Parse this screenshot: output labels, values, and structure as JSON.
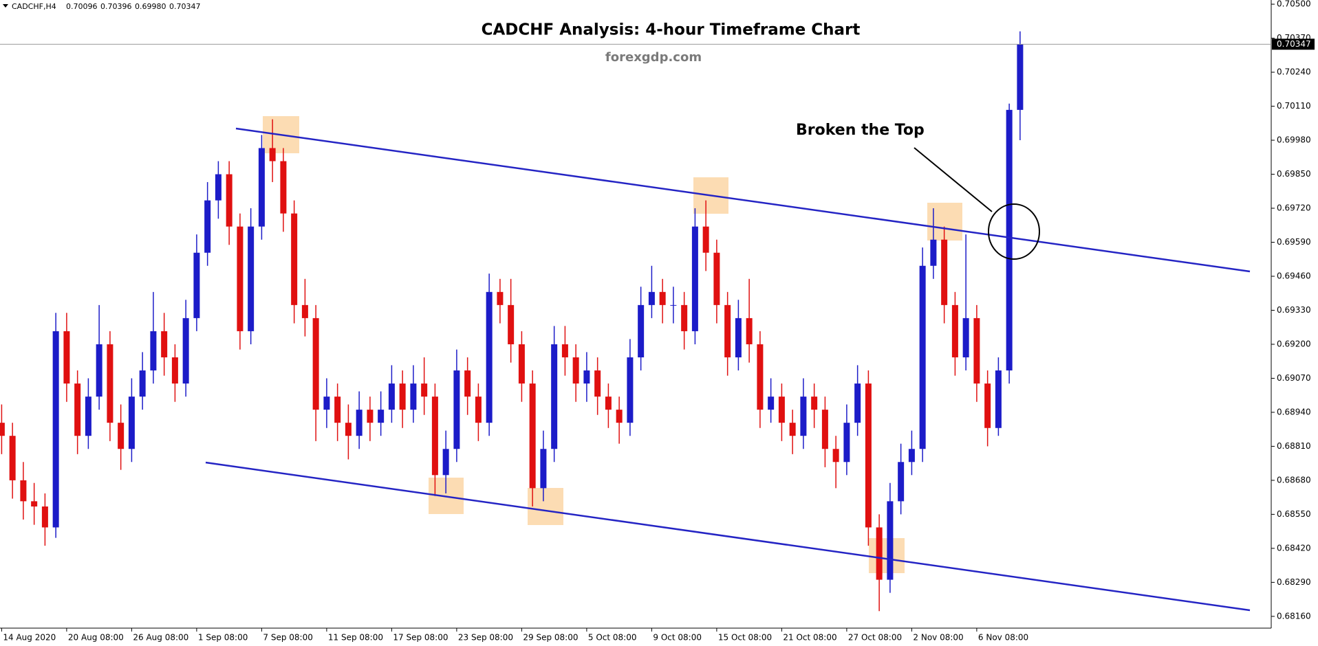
{
  "chart_data": {
    "type": "candlestick",
    "symbol": "CADCHF,H4",
    "title": "CADCHF Analysis: 4-hour Timeframe Chart",
    "source": "forexgdp.com",
    "annotation": "Broken the Top",
    "last_low_label": "0.69980",
    "up_color": "#1c1cc8",
    "down_color": "#e01010",
    "categories": [
      "14 Aug 2020",
      null,
      null,
      null,
      null,
      null,
      "20 Aug 08:00",
      null,
      null,
      null,
      null,
      null,
      "26 Aug 08:00",
      null,
      null,
      null,
      null,
      null,
      "1 Sep 08:00",
      null,
      null,
      null,
      null,
      null,
      "7 Sep 08:00",
      null,
      null,
      null,
      null,
      null,
      "11 Sep 08:00",
      null,
      null,
      null,
      null,
      null,
      "17 Sep 08:00",
      null,
      null,
      null,
      null,
      null,
      "23 Sep 08:00",
      null,
      null,
      null,
      null,
      null,
      "29 Sep 08:00",
      null,
      null,
      null,
      null,
      null,
      "5 Oct 08:00",
      null,
      null,
      null,
      null,
      null,
      "9 Oct 08:00",
      null,
      null,
      null,
      null,
      null,
      "15 Oct 08:00",
      null,
      null,
      null,
      null,
      null,
      "21 Oct 08:00",
      null,
      null,
      null,
      null,
      null,
      "27 Oct 08:00",
      null,
      null,
      null,
      null,
      null,
      "2 Nov 08:00",
      null,
      null,
      null,
      null,
      null,
      "6 Nov 08:00",
      null,
      null,
      null,
      null
    ],
    "open": [
      0.689,
      0.6885,
      0.6868,
      0.686,
      0.6858,
      0.685,
      0.6925,
      0.6905,
      0.6885,
      0.69,
      0.692,
      0.689,
      0.688,
      0.69,
      0.691,
      0.6925,
      0.6915,
      0.6905,
      0.693,
      0.6955,
      0.6975,
      0.6985,
      0.6965,
      0.6925,
      0.6965,
      0.6995,
      0.699,
      0.697,
      0.6935,
      0.693,
      0.6895,
      0.69,
      0.689,
      0.6885,
      0.6895,
      0.689,
      0.6895,
      0.6905,
      0.6895,
      0.6905,
      0.69,
      0.687,
      0.688,
      0.691,
      0.69,
      0.689,
      0.694,
      0.6935,
      0.692,
      0.6905,
      0.6865,
      0.688,
      0.692,
      0.6915,
      0.6905,
      0.691,
      0.69,
      0.6895,
      0.689,
      0.6915,
      0.6935,
      0.694,
      0.6935,
      0.6935,
      0.6925,
      0.6965,
      0.6955,
      0.6935,
      0.6915,
      0.693,
      0.692,
      0.6895,
      0.69,
      0.689,
      0.6885,
      0.69,
      0.6895,
      0.688,
      0.6875,
      0.689,
      0.6905,
      0.685,
      0.683,
      0.686,
      0.6875,
      0.688,
      0.695,
      0.696,
      0.6935,
      0.6915,
      0.693,
      0.6905,
      0.6888,
      0.691,
      0.70096
    ],
    "high": [
      0.6897,
      0.689,
      0.6875,
      0.6867,
      0.6863,
      0.6932,
      0.6932,
      0.691,
      0.6907,
      0.6935,
      0.6925,
      0.6897,
      0.6907,
      0.6917,
      0.694,
      0.6932,
      0.692,
      0.6937,
      0.6962,
      0.6982,
      0.699,
      0.699,
      0.697,
      0.6972,
      0.7,
      0.7006,
      0.6995,
      0.6975,
      0.6945,
      0.6935,
      0.6907,
      0.6905,
      0.6897,
      0.6902,
      0.69,
      0.6902,
      0.6912,
      0.691,
      0.6912,
      0.6915,
      0.6905,
      0.6887,
      0.6918,
      0.6915,
      0.6905,
      0.6947,
      0.6945,
      0.6945,
      0.6925,
      0.691,
      0.6887,
      0.6927,
      0.6927,
      0.692,
      0.6917,
      0.6915,
      0.6905,
      0.69,
      0.6922,
      0.6942,
      0.695,
      0.6945,
      0.6942,
      0.694,
      0.6972,
      0.6975,
      0.696,
      0.694,
      0.6937,
      0.6945,
      0.6925,
      0.6907,
      0.6905,
      0.6895,
      0.6907,
      0.6905,
      0.69,
      0.6885,
      0.6897,
      0.6912,
      0.691,
      0.6855,
      0.6867,
      0.6882,
      0.6887,
      0.6957,
      0.6972,
      0.6965,
      0.694,
      0.6962,
      0.6935,
      0.691,
      0.6915,
      0.7012,
      0.70396
    ],
    "low": [
      0.6878,
      0.6861,
      0.6853,
      0.6851,
      0.6843,
      0.6846,
      0.6898,
      0.6878,
      0.688,
      0.6895,
      0.6883,
      0.6872,
      0.6875,
      0.6895,
      0.6905,
      0.6908,
      0.6898,
      0.69,
      0.6925,
      0.695,
      0.6968,
      0.6958,
      0.6918,
      0.692,
      0.696,
      0.6982,
      0.6963,
      0.6928,
      0.6923,
      0.6883,
      0.6888,
      0.6883,
      0.6876,
      0.688,
      0.6883,
      0.6885,
      0.689,
      0.6888,
      0.689,
      0.6893,
      0.6862,
      0.6863,
      0.6875,
      0.6893,
      0.6883,
      0.6885,
      0.6928,
      0.6913,
      0.6898,
      0.6858,
      0.686,
      0.6875,
      0.6908,
      0.6898,
      0.6898,
      0.6893,
      0.6888,
      0.6882,
      0.6885,
      0.691,
      0.693,
      0.6928,
      0.6928,
      0.6918,
      0.692,
      0.6948,
      0.6928,
      0.6908,
      0.691,
      0.6913,
      0.6888,
      0.689,
      0.6883,
      0.6878,
      0.688,
      0.6888,
      0.6873,
      0.6865,
      0.687,
      0.6885,
      0.6843,
      0.6818,
      0.6825,
      0.6855,
      0.687,
      0.6875,
      0.6945,
      0.6928,
      0.6908,
      0.691,
      0.6898,
      0.6881,
      0.6885,
      0.6905,
      0.6998
    ],
    "close": [
      0.6885,
      0.6868,
      0.686,
      0.6858,
      0.685,
      0.6925,
      0.6905,
      0.6885,
      0.69,
      0.692,
      0.689,
      0.688,
      0.69,
      0.691,
      0.6925,
      0.6915,
      0.6905,
      0.693,
      0.6955,
      0.6975,
      0.6985,
      0.6965,
      0.6925,
      0.6965,
      0.6995,
      0.699,
      0.697,
      0.6935,
      0.693,
      0.6895,
      0.69,
      0.689,
      0.6885,
      0.6895,
      0.689,
      0.6895,
      0.6905,
      0.6895,
      0.6905,
      0.69,
      0.687,
      0.688,
      0.691,
      0.69,
      0.689,
      0.694,
      0.6935,
      0.692,
      0.6905,
      0.6865,
      0.688,
      0.692,
      0.6915,
      0.6905,
      0.691,
      0.69,
      0.6895,
      0.689,
      0.6915,
      0.6935,
      0.694,
      0.6935,
      0.6935,
      0.6925,
      0.6965,
      0.6955,
      0.6935,
      0.6915,
      0.693,
      0.692,
      0.6895,
      0.69,
      0.689,
      0.6885,
      0.69,
      0.6895,
      0.688,
      0.6875,
      0.689,
      0.6905,
      0.685,
      0.683,
      0.686,
      0.6875,
      0.688,
      0.695,
      0.696,
      0.6935,
      0.6915,
      0.693,
      0.6905,
      0.6888,
      0.691,
      0.70096,
      0.70347
    ],
    "ylim": [
      0.68115,
      0.70516
    ],
    "yticks": [
      {
        "value": 0.705,
        "label": "0.70500"
      },
      {
        "value": 0.7037,
        "label": "0.70370"
      },
      {
        "value": 0.7024,
        "label": "0.70240"
      },
      {
        "value": 0.7011,
        "label": "0.70110"
      },
      {
        "value": 0.6998,
        "label": "0.69980"
      },
      {
        "value": 0.6985,
        "label": "0.69850"
      },
      {
        "value": 0.6972,
        "label": "0.69720"
      },
      {
        "value": 0.6959,
        "label": "0.69590"
      },
      {
        "value": 0.6946,
        "label": "0.69460"
      },
      {
        "value": 0.6933,
        "label": "0.69330"
      },
      {
        "value": 0.692,
        "label": "0.69200"
      },
      {
        "value": 0.6907,
        "label": "0.69070"
      },
      {
        "value": 0.6894,
        "label": "0.68940"
      },
      {
        "value": 0.6881,
        "label": "0.68810"
      },
      {
        "value": 0.6868,
        "label": "0.68680"
      },
      {
        "value": 0.6855,
        "label": "0.68550"
      },
      {
        "value": 0.6842,
        "label": "0.68420"
      },
      {
        "value": 0.6829,
        "label": "0.68290"
      },
      {
        "value": 0.6816,
        "label": "0.68160"
      }
    ]
  }
}
